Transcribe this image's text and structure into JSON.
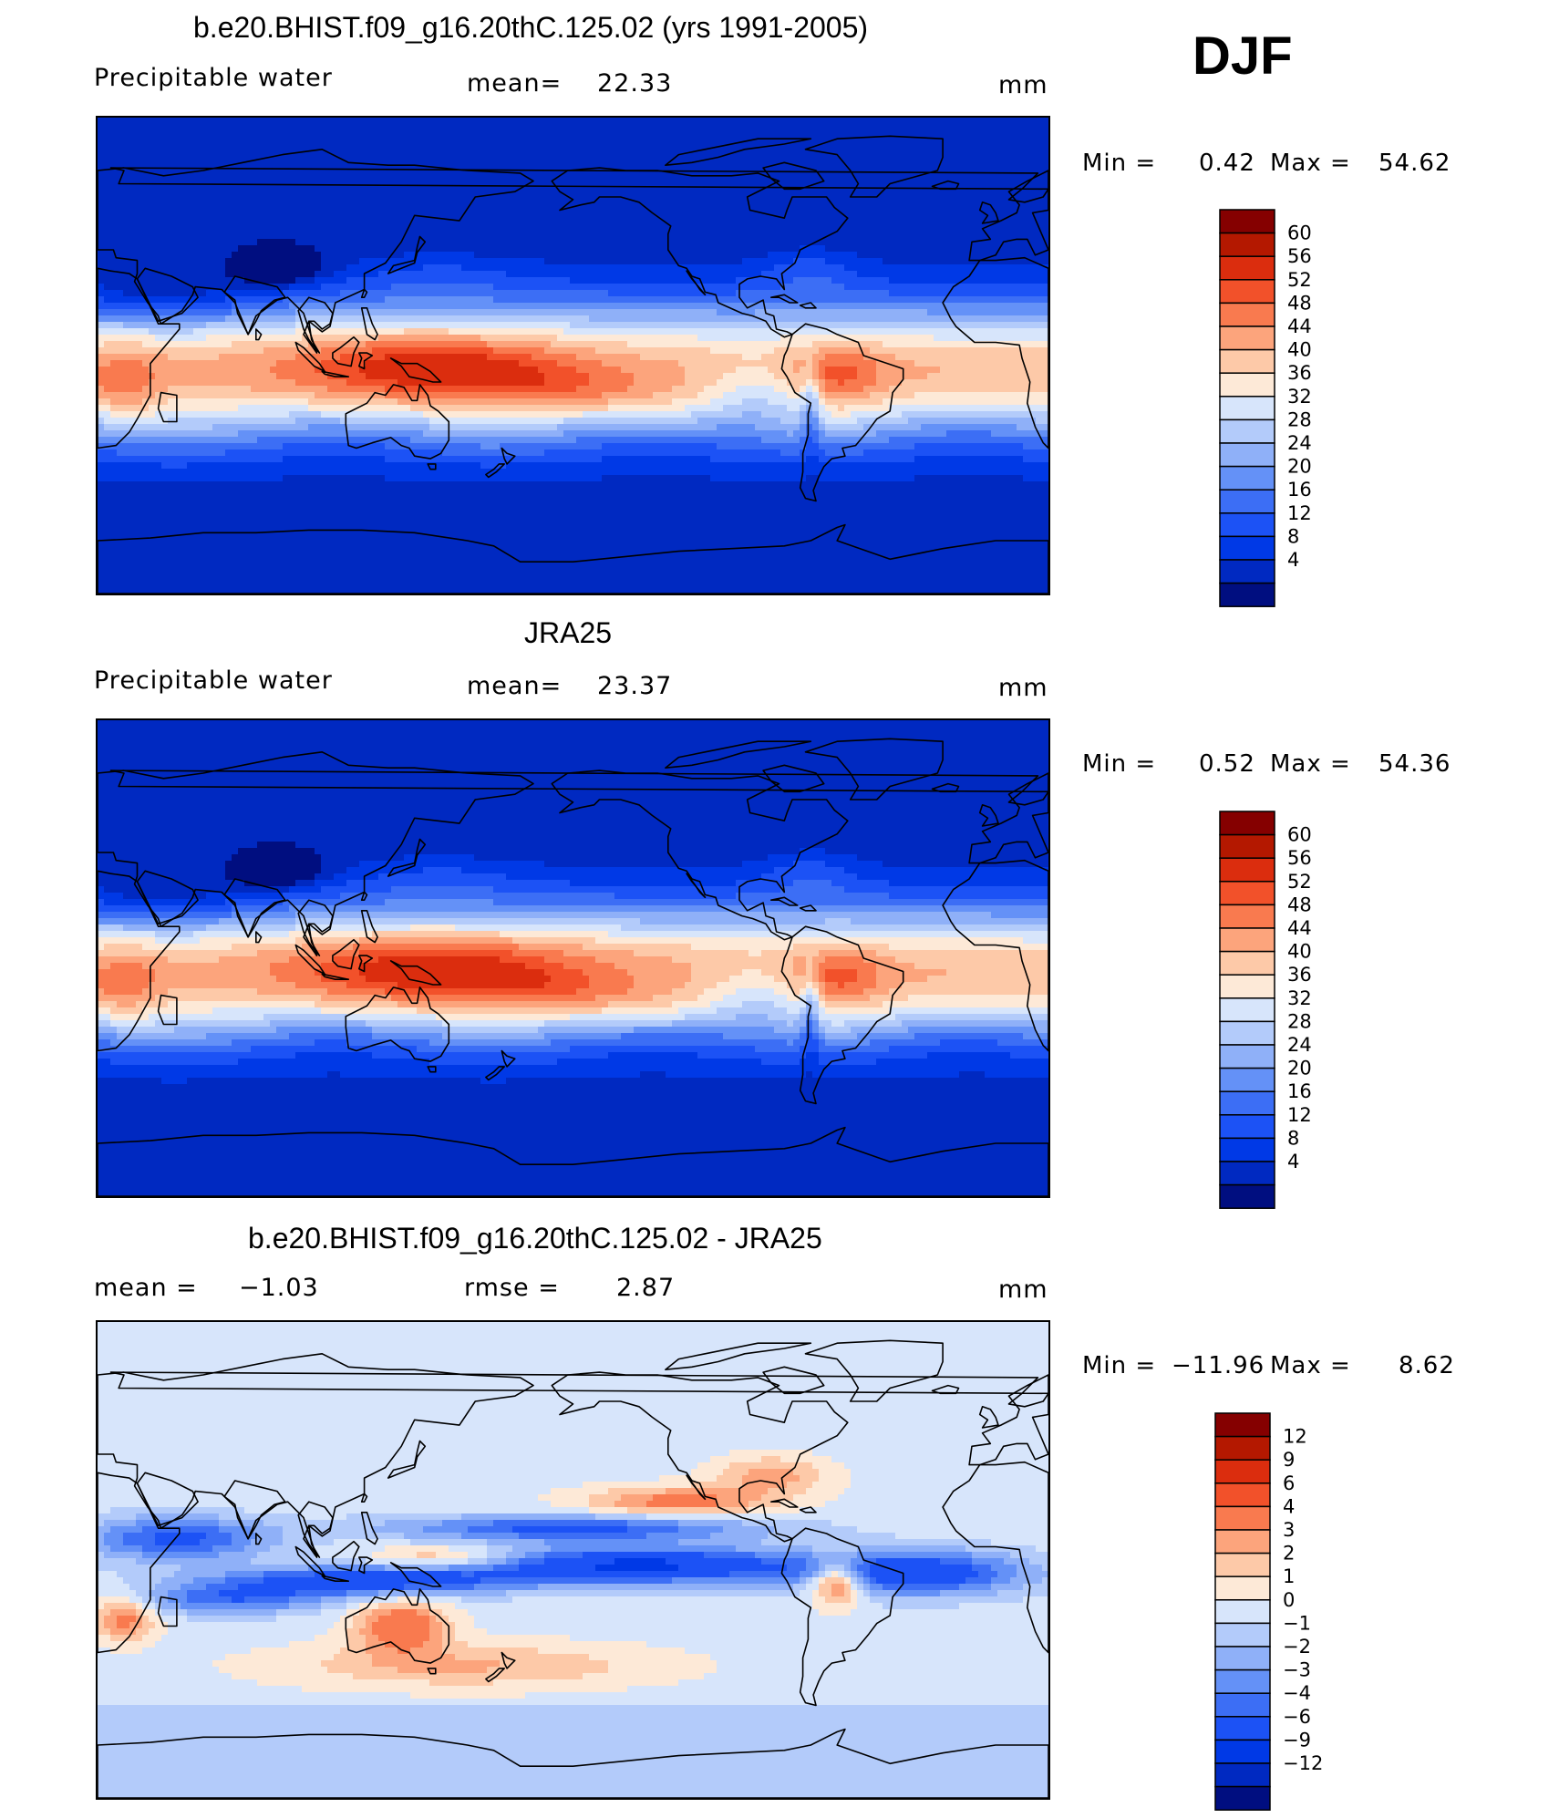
{
  "season": "DJF",
  "colors": {
    "abs_scale": [
      "#000e80",
      "#0029c1",
      "#0039e6",
      "#1c52f5",
      "#3c6ef5",
      "#6491f7",
      "#8fb0f8",
      "#b3cbfa",
      "#d7e5fb",
      "#fde9d7",
      "#fdc9a8",
      "#fca47c",
      "#f97a4f",
      "#f2512a",
      "#db2d0e",
      "#b41800",
      "#850000"
    ],
    "diff_scale": [
      "#000e80",
      "#0029c1",
      "#0039e6",
      "#1c52f5",
      "#3c6ef5",
      "#6491f7",
      "#8fb0f8",
      "#b3cbfa",
      "#d7e5fb",
      "#fde9d7",
      "#fdc9a8",
      "#fca47c",
      "#f97a4f",
      "#f2512a",
      "#db2d0e",
      "#b41800",
      "#850000"
    ],
    "coastline": "#000000"
  },
  "panels": [
    {
      "title": "b.e20.BHIST.f09_g16.20thC.125.02 (yrs 1991-2005)",
      "left_label": "Precipitable  water",
      "center_label": "mean=",
      "center_value": "22.33",
      "units": "mm",
      "stats_min_label": "Min  =",
      "stats_min": "0.42",
      "stats_max_label": "Max  =",
      "stats_max": "54.62",
      "colorbar_ticks": [
        "60",
        "56",
        "52",
        "48",
        "44",
        "40",
        "36",
        "32",
        "28",
        "24",
        "20",
        "16",
        "12",
        "8",
        "4"
      ]
    },
    {
      "title": "JRA25",
      "left_label": "Precipitable  water",
      "center_label": "mean=",
      "center_value": "23.37",
      "units": "mm",
      "stats_min_label": "Min  =",
      "stats_min": "0.52",
      "stats_max_label": "Max  =",
      "stats_max": "54.36",
      "colorbar_ticks": [
        "60",
        "56",
        "52",
        "48",
        "44",
        "40",
        "36",
        "32",
        "28",
        "24",
        "20",
        "16",
        "12",
        "8",
        "4"
      ]
    },
    {
      "title": "b.e20.BHIST.f09_g16.20thC.125.02 - JRA25",
      "left_label": "mean  =",
      "left_value": "−1.03",
      "center_label": "rmse  =",
      "center_value": "2.87",
      "units": "mm",
      "stats_min_label": "Min  =",
      "stats_min": "−11.96",
      "stats_max_label": "Max  =",
      "stats_max": "8.62",
      "colorbar_ticks": [
        "12",
        "9",
        "6",
        "4",
        "3",
        "2",
        "1",
        "0",
        "−1",
        "−2",
        "−3",
        "−4",
        "−6",
        "−9",
        "−12"
      ]
    }
  ],
  "chart_data": [
    {
      "type": "heatmap",
      "title": "b.e20.BHIST.f09_g16.20thC.125.02 (yrs 1991-2005)",
      "variable": "Precipitable  water",
      "units": "mm",
      "mean": 22.33,
      "min": 0.42,
      "max": 54.62,
      "levels": [
        4,
        8,
        12,
        16,
        20,
        24,
        28,
        32,
        36,
        40,
        44,
        48,
        52,
        56,
        60
      ],
      "projection": "global cylindrical, Pacific-centered"
    },
    {
      "type": "heatmap",
      "title": "JRA25",
      "variable": "Precipitable  water",
      "units": "mm",
      "mean": 23.37,
      "min": 0.52,
      "max": 54.36,
      "levels": [
        4,
        8,
        12,
        16,
        20,
        24,
        28,
        32,
        36,
        40,
        44,
        48,
        52,
        56,
        60
      ],
      "projection": "global cylindrical, Pacific-centered"
    },
    {
      "type": "heatmap",
      "title": "b.e20.BHIST.f09_g16.20thC.125.02 - JRA25",
      "units": "mm",
      "mean": -1.03,
      "rmse": 2.87,
      "min": -11.96,
      "max": 8.62,
      "levels": [
        -12,
        -9,
        -6,
        -4,
        -3,
        -2,
        -1,
        0,
        1,
        2,
        3,
        4,
        6,
        9,
        12
      ],
      "projection": "global cylindrical, Pacific-centered"
    }
  ]
}
